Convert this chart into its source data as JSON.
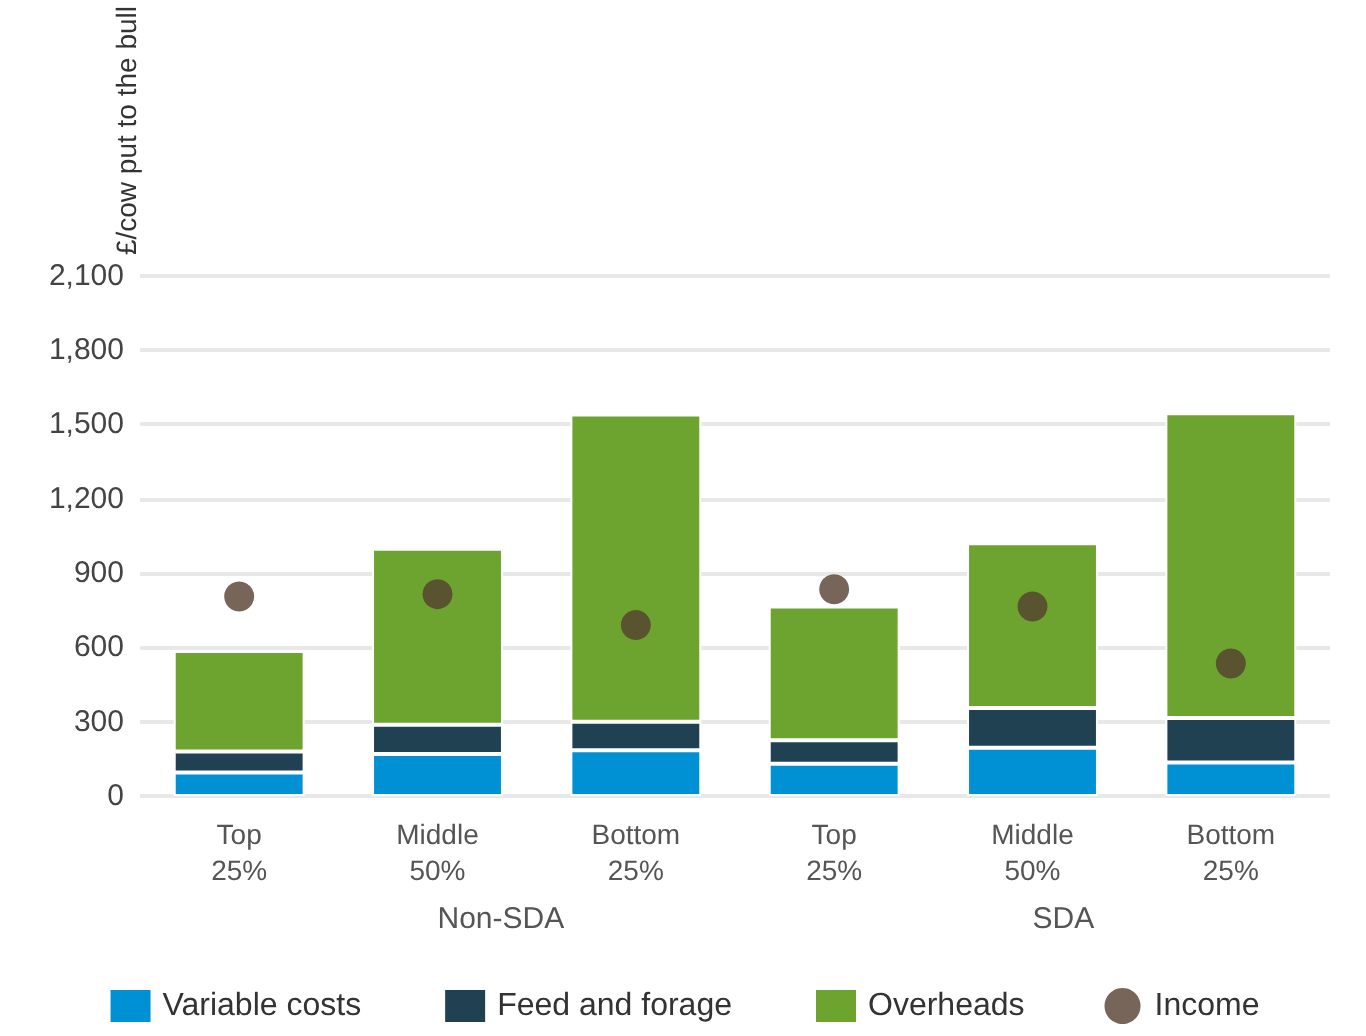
{
  "chart_data": {
    "type": "bar",
    "ylabel": "£/cow put to the bull",
    "categories": [
      "Top\n25%",
      "Middle\n50%",
      "Bottom\n25%",
      "Top\n25%",
      "Middle\n50%",
      "Bottom\n25%"
    ],
    "annotations": [
      "Non-SDA",
      "SDA"
    ],
    "stacked": true,
    "series": [
      {
        "name": "Variable costs",
        "color": "#0091d5",
        "values": [
          95,
          170,
          185,
          130,
          195,
          135
        ]
      },
      {
        "name": "Feed and forage",
        "color": "#1f4152",
        "values": [
          85,
          118,
          115,
          95,
          160,
          180
        ]
      },
      {
        "name": "Overheads",
        "color": "#6da32f",
        "values": [
          405,
          710,
          1240,
          540,
          665,
          1230
        ]
      },
      {
        "name": "Income",
        "type": "scatter",
        "color": "#553f30",
        "marker": "circle",
        "values": [
          805,
          815,
          690,
          835,
          765,
          535
        ]
      }
    ],
    "ylim": [
      0,
      2100
    ],
    "yticks": [
      0,
      300,
      600,
      900,
      {
        "value": 1200,
        "label": "1,200"
      },
      {
        "value": 1500,
        "label": "1,500"
      },
      {
        "value": 1800,
        "label": "1,800"
      },
      {
        "value": 2100,
        "label": "2,100"
      }
    ],
    "grid": "y",
    "legend": "bottom"
  }
}
